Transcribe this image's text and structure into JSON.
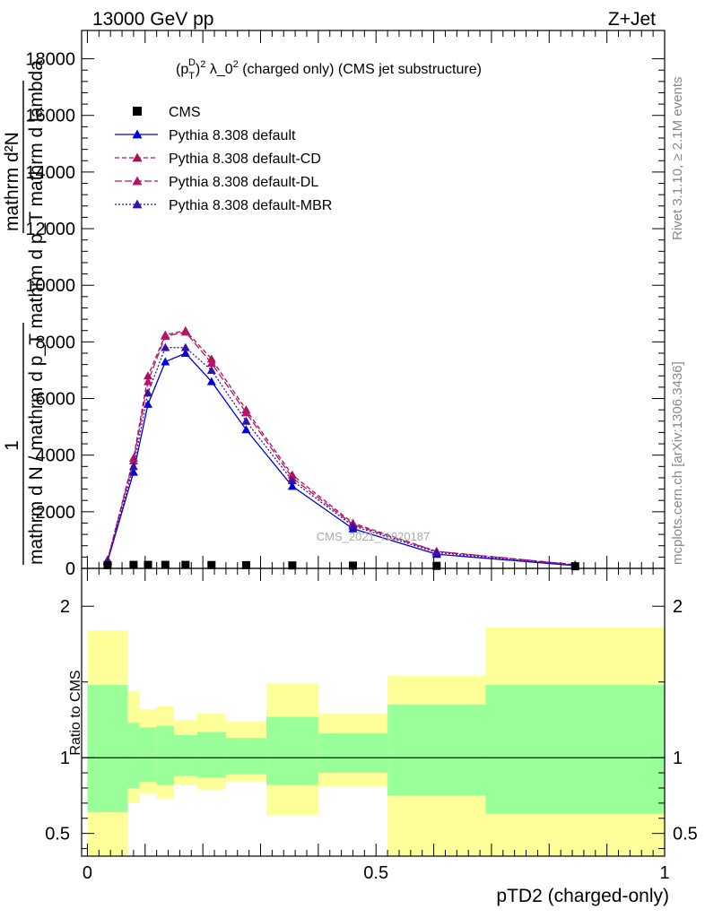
{
  "header": {
    "left": "13000 GeV pp",
    "right": "Z+Jet"
  },
  "side_text": {
    "rivet": "Rivet 3.1.10, ≥ 2.1M events",
    "mcplots": "mcplots.cern.ch [arXiv:1306.3436]"
  },
  "watermark": "CMS_2021_I1920187",
  "chart_data": [
    {
      "type": "line",
      "title": "(p_T^D)^2 λ_0^2 (charged only) (CMS jet substructure)",
      "ylabel": "1 / mathrm d N / mathrm d p_T mathrm d p_T mathrm d lambda   mathrm d^2N",
      "ylim": [
        0,
        19000
      ],
      "yticks": [
        0,
        2000,
        4000,
        6000,
        8000,
        10000,
        12000,
        14000,
        16000,
        18000
      ],
      "ytick_labels": [
        "0",
        "2000",
        "4000",
        "6000",
        "8000",
        "10000",
        "12000",
        "14000",
        "16000",
        "18000"
      ],
      "xlim": [
        -0.01,
        1.0
      ],
      "legend": [
        {
          "name": "CMS",
          "color": "#000000",
          "marker": "square",
          "dash": ""
        },
        {
          "name": "Pythia 8.308 default",
          "color": "#0000dd",
          "marker": "triangle",
          "dash": ""
        },
        {
          "name": "Pythia 8.308 default-CD",
          "color": "#aa1155",
          "marker": "triangle",
          "dash": "5,3"
        },
        {
          "name": "Pythia 8.308 default-DL",
          "color": "#bb1166",
          "marker": "triangle",
          "dash": "8,3"
        },
        {
          "name": "Pythia 8.308 default-MBR",
          "color": "#3311aa",
          "marker": "triangle",
          "dash": "2,2"
        }
      ],
      "x": [
        0.035,
        0.08,
        0.105,
        0.135,
        0.17,
        0.215,
        0.275,
        0.355,
        0.46,
        0.605,
        0.845
      ],
      "cms_values": [
        50,
        60,
        60,
        60,
        60,
        55,
        50,
        40,
        35,
        25,
        10
      ],
      "series": [
        {
          "name": "Pythia 8.308 default",
          "values": [
            250,
            3400,
            5800,
            7300,
            7600,
            6600,
            4900,
            2900,
            1400,
            500,
            100
          ]
        },
        {
          "name": "Pythia 8.308 default-CD",
          "values": [
            300,
            3900,
            6800,
            8250,
            8400,
            7400,
            5600,
            3300,
            1600,
            600,
            130
          ]
        },
        {
          "name": "Pythia 8.308 default-DL",
          "values": [
            300,
            3800,
            6600,
            8200,
            8350,
            7250,
            5500,
            3200,
            1550,
            600,
            130
          ]
        },
        {
          "name": "Pythia 8.308 default-MBR",
          "values": [
            270,
            3600,
            6200,
            7800,
            7800,
            7000,
            5200,
            3100,
            1500,
            560,
            110
          ]
        }
      ]
    },
    {
      "type": "area",
      "ylabel": "Ratio to CMS",
      "xlabel": "pTD2 (charged-only)",
      "ylim": [
        0.35,
        2.25
      ],
      "yticks": [
        0.5,
        1,
        2
      ],
      "ytick_labels": [
        "0.5",
        "1",
        "2"
      ],
      "xticks": [
        0,
        0.5,
        1
      ],
      "xtick_labels": [
        "0",
        "0.5",
        "1"
      ],
      "bins": [
        {
          "lo": 0.0,
          "hi": 0.07,
          "stat": [
            0.64,
            1.48
          ],
          "total": [
            0.35,
            1.84
          ]
        },
        {
          "lo": 0.07,
          "hi": 0.09,
          "stat": [
            0.8,
            1.23
          ],
          "total": [
            0.7,
            1.44
          ]
        },
        {
          "lo": 0.09,
          "hi": 0.12,
          "stat": [
            0.84,
            1.2
          ],
          "total": [
            0.76,
            1.32
          ]
        },
        {
          "lo": 0.12,
          "hi": 0.15,
          "stat": [
            0.82,
            1.21
          ],
          "total": [
            0.73,
            1.34
          ]
        },
        {
          "lo": 0.15,
          "hi": 0.19,
          "stat": [
            0.88,
            1.15
          ],
          "total": [
            0.82,
            1.25
          ]
        },
        {
          "lo": 0.19,
          "hi": 0.24,
          "stat": [
            0.87,
            1.17
          ],
          "total": [
            0.79,
            1.29
          ]
        },
        {
          "lo": 0.24,
          "hi": 0.31,
          "stat": [
            0.89,
            1.13
          ],
          "total": [
            0.84,
            1.24
          ]
        },
        {
          "lo": 0.31,
          "hi": 0.4,
          "stat": [
            0.82,
            1.27
          ],
          "total": [
            0.62,
            1.49
          ]
        },
        {
          "lo": 0.4,
          "hi": 0.52,
          "stat": [
            0.9,
            1.16
          ],
          "total": [
            0.81,
            1.29
          ]
        },
        {
          "lo": 0.52,
          "hi": 0.69,
          "stat": [
            0.75,
            1.35
          ],
          "total": [
            0.35,
            1.54
          ]
        },
        {
          "lo": 0.69,
          "hi": 1.0,
          "stat": [
            0.63,
            1.48
          ],
          "total": [
            0.35,
            1.86
          ]
        }
      ],
      "stat_color": "#99ff99",
      "total_color": "#ffff99"
    }
  ]
}
